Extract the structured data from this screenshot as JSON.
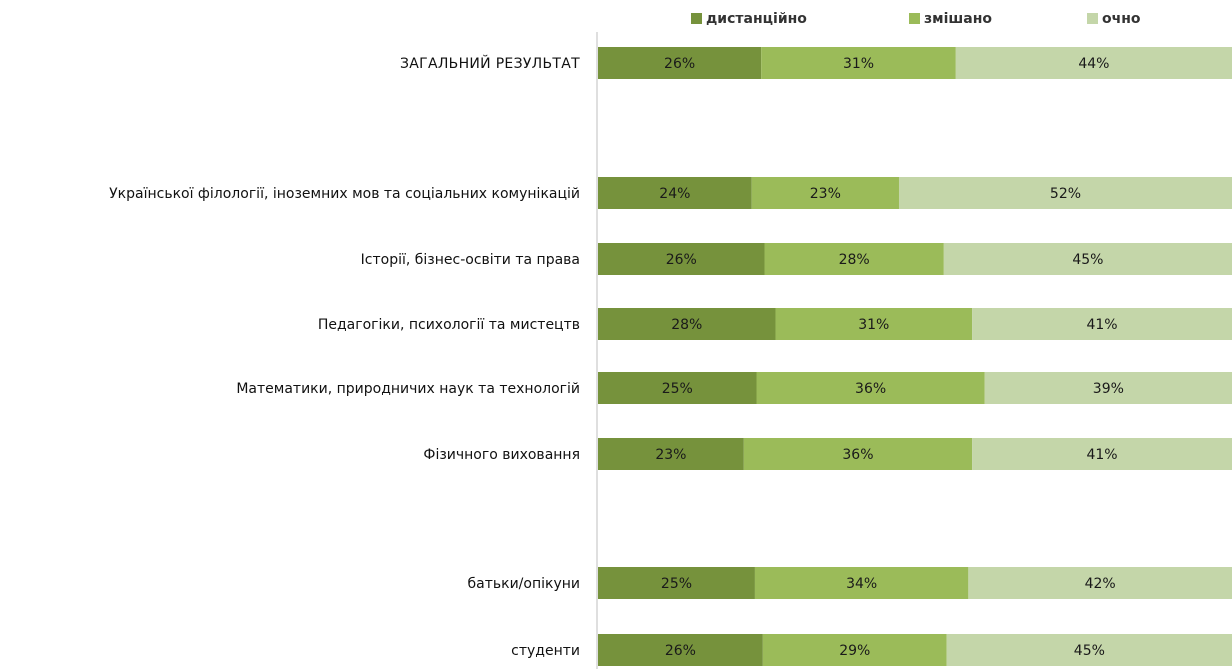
{
  "chart_data": {
    "type": "bar",
    "orientation": "horizontal",
    "stacked": true,
    "percent_stacked": true,
    "title": "",
    "xlabel": "",
    "ylabel": "",
    "xlim": [
      0,
      100
    ],
    "grid": false,
    "legend_position": "top",
    "groups": [
      {
        "categories": [
          "ЗАГАЛЬНИЙ РЕЗУЛЬТАТ"
        ]
      },
      {
        "categories": [
          "Української філології, іноземних мов та соціальних комунікацій",
          "Історії, бізнес-освіти та права",
          "Педагогіки, психології та мистецтв",
          "Математики, природничих наук та технологій",
          "Фізичного виховання"
        ]
      },
      {
        "categories": [
          "батьки/опікуни",
          "студенти"
        ]
      }
    ],
    "categories": [
      "ЗАГАЛЬНИЙ РЕЗУЛЬТАТ",
      "Української філології, іноземних мов та соціальних комунікацій",
      "Історії, бізнес-освіти та права",
      "Педагогіки, психології та мистецтв",
      "Математики, природничих наук та технологій",
      "Фізичного виховання",
      "батьки/опікуни",
      "студенти"
    ],
    "series": [
      {
        "name": "дистанційно",
        "color": "#76923c",
        "values": [
          26,
          24,
          26,
          28,
          25,
          23,
          25,
          26
        ]
      },
      {
        "name": "змішано",
        "color": "#9bbb59",
        "values": [
          31,
          23,
          28,
          31,
          36,
          36,
          34,
          29
        ]
      },
      {
        "name": "очно",
        "color": "#c4d6a9",
        "values": [
          44,
          52,
          45,
          41,
          39,
          41,
          42,
          45
        ]
      }
    ],
    "data_labels": [
      [
        "26%",
        "31%",
        "44%"
      ],
      [
        "24%",
        "23%",
        "52%"
      ],
      [
        "26%",
        "28%",
        "45%"
      ],
      [
        "28%",
        "31%",
        "41%"
      ],
      [
        "25%",
        "36%",
        "39%"
      ],
      [
        "23%",
        "36%",
        "41%"
      ],
      [
        "25%",
        "34%",
        "42%"
      ],
      [
        "26%",
        "29%",
        "45%"
      ]
    ]
  }
}
